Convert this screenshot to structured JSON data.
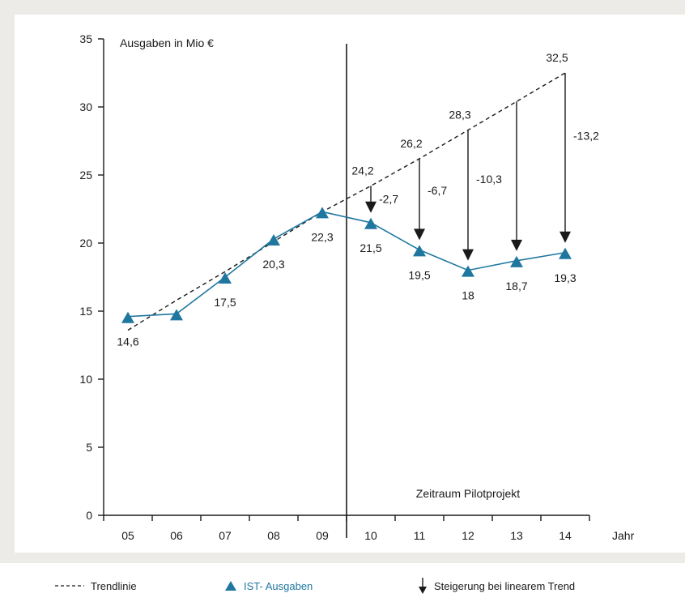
{
  "chart_data": {
    "type": "line",
    "ylabel": "Ausgaben in Mio €",
    "xlabel": "Jahr",
    "ylim": [
      0,
      35
    ],
    "yticks": [
      "0",
      "5",
      "10",
      "15",
      "20",
      "25",
      "30",
      "35"
    ],
    "categories": [
      "05",
      "06",
      "07",
      "08",
      "09",
      "10",
      "11",
      "12",
      "13",
      "14"
    ],
    "series": [
      {
        "name": "IST- Ausgaben",
        "values": [
          14.6,
          14.8,
          17.5,
          20.3,
          22.3,
          21.5,
          19.5,
          18,
          18.7,
          19.3
        ],
        "labels": [
          "14,6",
          "",
          "17,5",
          "20,3",
          "22,3",
          "21,5",
          "19,5",
          "18",
          "18,7",
          "19,3"
        ],
        "color": "#1f77a0"
      },
      {
        "name": "Trendlinie",
        "values": [
          13.6,
          15.8,
          17.9,
          20.1,
          22.3,
          24.2,
          26.2,
          28.3,
          30.4,
          32.5
        ],
        "labels": [
          "",
          "",
          "",
          "",
          "",
          "24,2",
          "26,2",
          "28,3",
          "",
          "32,5"
        ],
        "color": "#1a1a1a"
      }
    ],
    "differences": [
      {
        "category": "10",
        "value": "-2,7"
      },
      {
        "category": "11",
        "value": "-6,7"
      },
      {
        "category": "12",
        "value": "-10,3"
      },
      {
        "category": "13",
        "value": ""
      },
      {
        "category": "14",
        "value": "-13,2"
      }
    ],
    "divider_after": "09",
    "annotation": "Zeitraum Pilotprojekt"
  },
  "legend": {
    "trend": "Trendlinie",
    "ist": "IST- Ausgaben",
    "arrow": "Steigerung bei linearem Trend"
  },
  "colors": {
    "ist": "#1f77a0",
    "ink": "#1a1a1a",
    "frame": "#ecebe7"
  }
}
